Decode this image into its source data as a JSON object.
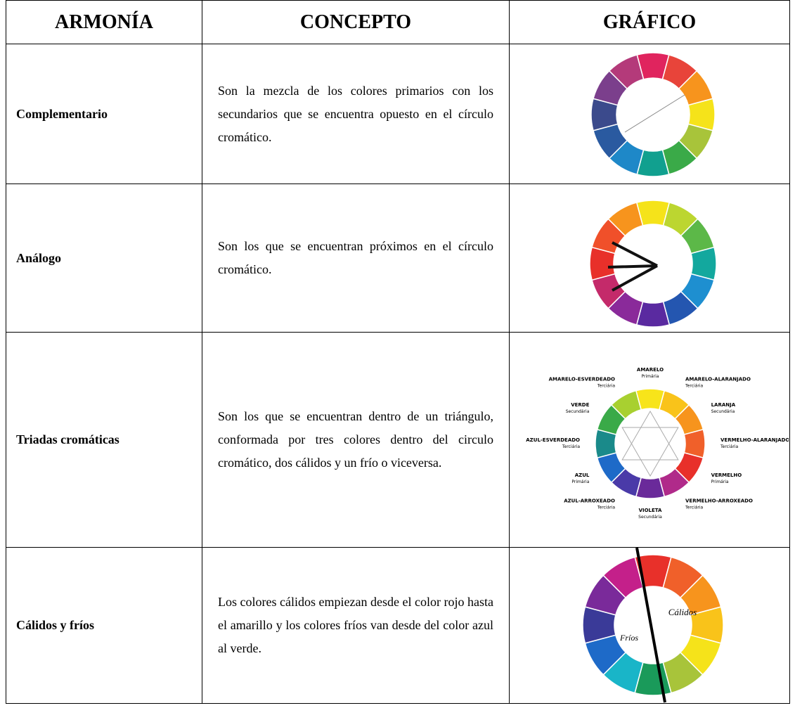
{
  "table": {
    "headers": [
      "ARMONÍA",
      "CONCEPTO",
      "GRÁFICO"
    ],
    "rows": [
      {
        "armonia": "Complementario",
        "concepto": "Son la mezcla de los colores primarios con los secundarios que se encuentra opuesto en el círculo cromático."
      },
      {
        "armonia": "Análogo",
        "concepto": "Son los que se encuentran próximos en el círculo cromático."
      },
      {
        "armonia": "Triadas cromáticas",
        "concepto": "Son los que se encuentran dentro de un triángulo, conformada por tres colores dentro del circulo cromático, dos cálidos y un frío o viceversa.",
        "grafico_labels": [
          {
            "name": "AMARELO",
            "role": "Primária"
          },
          {
            "name": "AMARELO-ALARANJADO",
            "role": "Terciária"
          },
          {
            "name": "LARANJA",
            "role": "Secundária"
          },
          {
            "name": "VERMELHO-ALARANJADO",
            "role": "Terciária"
          },
          {
            "name": "VERMELHO",
            "role": "Primária"
          },
          {
            "name": "VERMELHO-ARROXEADO",
            "role": "Terciária"
          },
          {
            "name": "VIOLETA",
            "role": "Secundária"
          },
          {
            "name": "AZUL-ARROXEADO",
            "role": "Terciária"
          },
          {
            "name": "AZUL",
            "role": "Primária"
          },
          {
            "name": "AZUL-ESVERDEADO",
            "role": "Terciária"
          },
          {
            "name": "VERDE",
            "role": "Secundária"
          },
          {
            "name": "AMARELO-ESVERDEADO",
            "role": "Terciária"
          }
        ]
      },
      {
        "armonia": "Cálidos y fríos",
        "concepto": "Los colores cálidos empiezan desde el color rojo hasta el amarillo y los colores fríos van desde del color azul al verde.",
        "grafico_labels": {
          "warm": "Cálidos",
          "cold": "Fríos"
        }
      }
    ]
  }
}
